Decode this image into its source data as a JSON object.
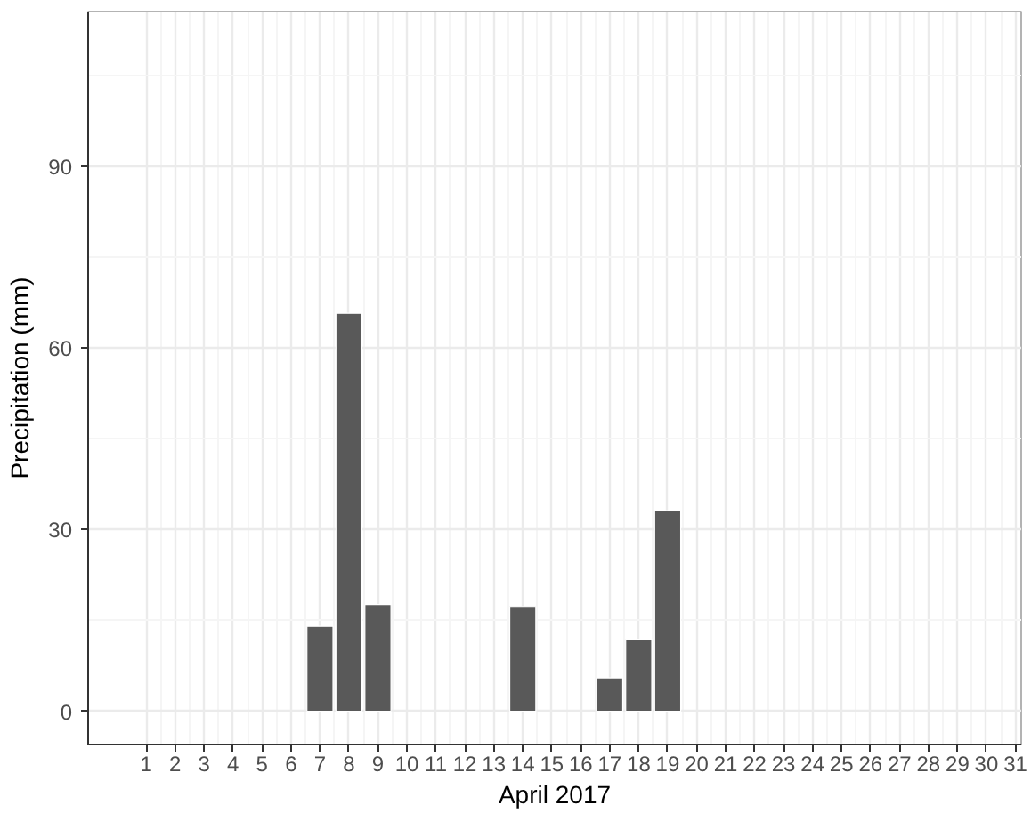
{
  "chart_data": {
    "type": "bar",
    "xlabel": "April 2017",
    "ylabel": "Precipitation (mm)",
    "x": [
      7,
      8,
      9,
      14,
      17,
      18,
      19
    ],
    "values": [
      14,
      65.7,
      17.6,
      17.3,
      5.5,
      11.9,
      33.1
    ],
    "color": "#595959",
    "xlim": [
      -1,
      31.2
    ],
    "xticks": [
      1,
      2,
      3,
      4,
      5,
      6,
      7,
      8,
      9,
      10,
      11,
      12,
      13,
      14,
      15,
      16,
      17,
      18,
      19,
      20,
      21,
      22,
      23,
      24,
      25,
      26,
      27,
      28,
      29,
      30,
      31
    ],
    "ylim": [
      -5.5,
      115.5
    ],
    "yticks": [
      0,
      30,
      60,
      90
    ],
    "grid": true
  }
}
